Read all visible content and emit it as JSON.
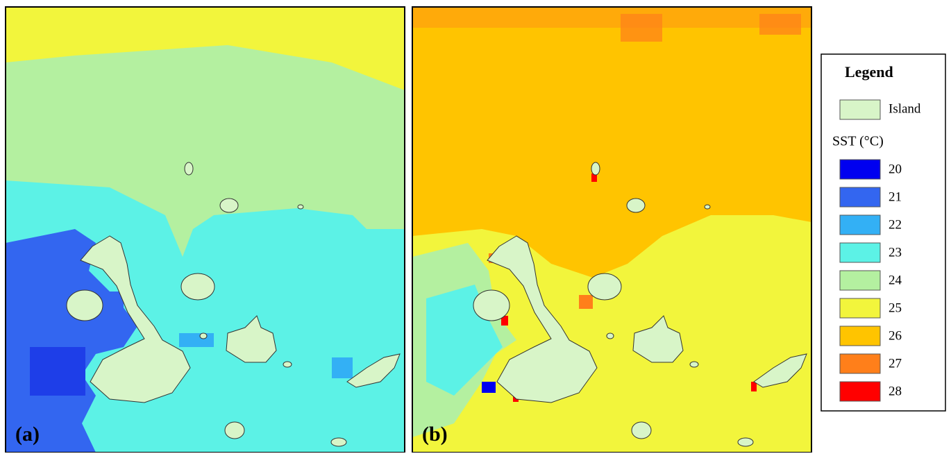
{
  "panels": [
    {
      "label": "(a)"
    },
    {
      "label": "(b)"
    }
  ],
  "legend": {
    "title": "Legend",
    "island": {
      "label": "Island",
      "color": "#d8f5c8"
    },
    "sst_title": "SST (°C)",
    "items": [
      {
        "label": 20,
        "color": "#0000f0"
      },
      {
        "label": 21,
        "color": "#3366f0"
      },
      {
        "label": 22,
        "color": "#33b0f5"
      },
      {
        "label": 23,
        "color": "#5cf2e6"
      },
      {
        "label": 24,
        "color": "#b4f0a0"
      },
      {
        "label": 25,
        "color": "#f2f53c"
      },
      {
        "label": 26,
        "color": "#ffc400"
      },
      {
        "label": 27,
        "color": "#ff7f1a"
      },
      {
        "label": 28,
        "color": "#ff0000"
      }
    ]
  }
}
